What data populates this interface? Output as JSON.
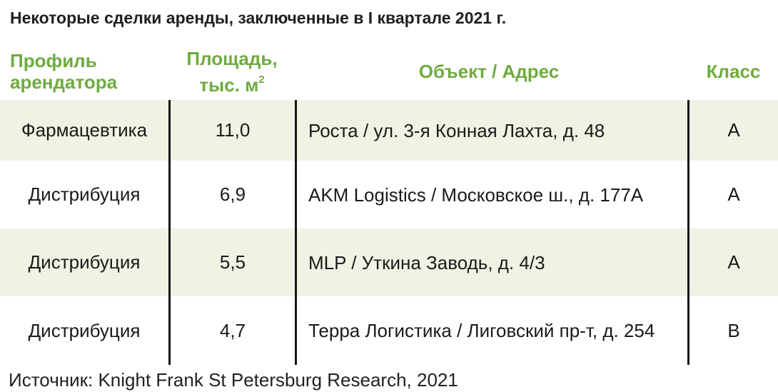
{
  "title": "Некоторые сделки аренды, заключенные в I квартале 2021 г.",
  "headers": {
    "profile": "Профиль арендатора",
    "area": "Площадь, тыс. м",
    "area_sup": "2",
    "object": "Объект / Адрес",
    "class": "Класс"
  },
  "rows": [
    {
      "profile": "Фармацевтика",
      "area": "11,0",
      "object": "Роста / ул. 3-я Конная Лахта, д. 48",
      "class": "A"
    },
    {
      "profile": "Дистрибуция",
      "area": "6,9",
      "object": "AKM Logistics / Московское ш., д. 177А",
      "class": "A"
    },
    {
      "profile": "Дистрибуция",
      "area": "5,5",
      "object": "MLP / Уткина Заводь, д. 4/3",
      "class": "A"
    },
    {
      "profile": "Дистрибуция",
      "area": "4,7",
      "object": "Терра Логистика / Лиговский пр-т, д. 254",
      "class": "B"
    }
  ],
  "source": "Источник: Knight Frank St Petersburg Research, 2021",
  "colors": {
    "accent": "#6fab3f",
    "row_band": "#eef3e3",
    "divider": "#151515"
  }
}
